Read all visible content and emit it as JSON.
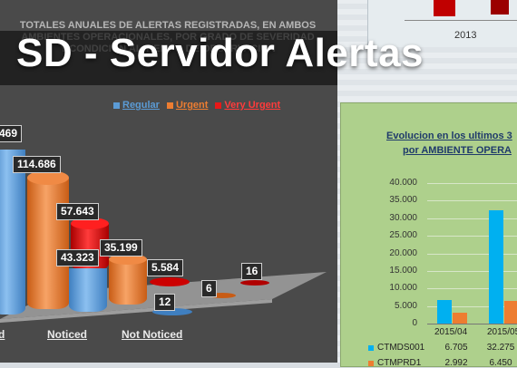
{
  "overlay_title": "SD - Servidor Alertas",
  "left_chart": {
    "title": "TOTALES ANUALES DE ALERTAS REGISTRADAS, EN AMBOS AMBIENTES OPERACIONALES, POR GRADO DE SEVERIDAD Y CONDICION AL TIEMPO DE OBSERVACION",
    "legend": [
      {
        "name": "Regular",
        "color": "#5b9bd5"
      },
      {
        "name": "Urgent",
        "color": "#ed7d31"
      },
      {
        "name": "Very Urgent",
        "color": "#e81818"
      }
    ],
    "categories": [
      "d",
      "Noticed",
      "Not Noticed"
    ],
    "labels": {
      "c1_regular": "469",
      "c1_urgent": "114.686",
      "c2_very_urgent": "57.643",
      "c2_regular": "43.323",
      "c2_urgent": "35.199",
      "c3_very_urgent": "5.584",
      "c3_regular": "12",
      "c3_urgent": "6",
      "c3_very_urgent_2": "16"
    }
  },
  "top_right_chart": {
    "tick": "2013"
  },
  "right_chart": {
    "title_line1": "Evolucion en los ultimos 3",
    "title_line2": "por AMBIENTE OPERA",
    "yticks": [
      "40.000",
      "35.000",
      "30.000",
      "25.000",
      "20.000",
      "15.000",
      "10.000",
      "5.000",
      "0"
    ],
    "categories": [
      "2015/04",
      "2015/05"
    ],
    "series": [
      {
        "name": "CTMDS001",
        "color": "#00b0f0",
        "values": [
          "6.705",
          "32.275"
        ]
      },
      {
        "name": "CTMPRD1",
        "color": "#ed7d31",
        "values": [
          "2.992",
          "6.450"
        ]
      }
    ]
  },
  "chart_data": [
    {
      "type": "bar",
      "title": "Evolucion en los ultimos 3 por AMBIENTE OPERA",
      "categories": [
        "2015/04",
        "2015/05"
      ],
      "series": [
        {
          "name": "CTMDS001",
          "values": [
            6705,
            32275
          ]
        },
        {
          "name": "CTMPRD1",
          "values": [
            2992,
            6450
          ]
        }
      ],
      "ylim": [
        0,
        40000
      ]
    },
    {
      "type": "bar",
      "title": "TOTALES ANUALES DE ALERTAS REGISTRADAS, EN AMBOS AMBIENTES OPERACIONALES, POR GRADO DE SEVERIDAD Y CONDICION AL TIEMPO DE OBSERVACION",
      "categories": [
        "Noticed",
        "Not Noticed"
      ],
      "series": [
        {
          "name": "Regular",
          "values": [
            43323,
            12
          ]
        },
        {
          "name": "Urgent",
          "values": [
            35199,
            6
          ]
        },
        {
          "name": "Very Urgent",
          "values": [
            57643,
            16
          ]
        }
      ]
    }
  ]
}
